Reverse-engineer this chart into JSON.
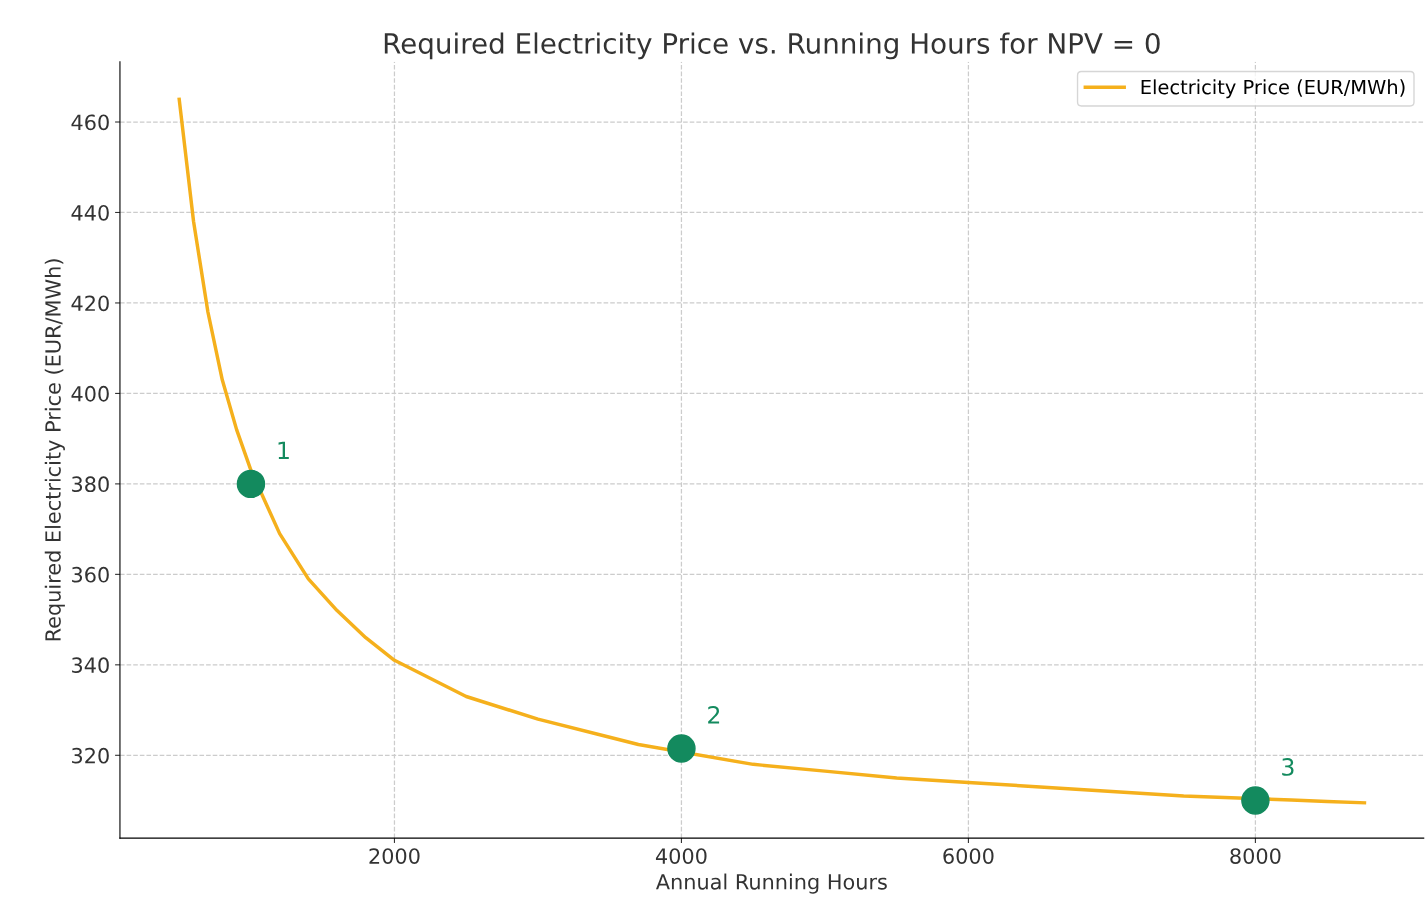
{
  "chart_data": {
    "type": "line",
    "title": "Required Electricity Price vs. Running Hours for NPV = 0",
    "xlabel": "Annual Running Hours",
    "ylabel": "Required Electricity Price (EUR/MWh)",
    "series": [
      {
        "name": "Electricity Price (EUR/MWh)",
        "color": "#f5b01c",
        "marker": "none",
        "x": [
          500,
          600,
          700,
          800,
          900,
          1000,
          1200,
          1400,
          1600,
          1800,
          2000,
          2500,
          3000,
          3500,
          3700,
          4500,
          5000,
          5500,
          6000,
          6500,
          7000,
          7500,
          8250,
          8500,
          8760
        ],
        "values": [
          465,
          438,
          418,
          403,
          392,
          383,
          369,
          359,
          352,
          346,
          341,
          333,
          328,
          324,
          322.4,
          318,
          316.5,
          315,
          314,
          313,
          312,
          311,
          310.1,
          309.8,
          309.5
        ]
      },
      {
        "type": "scatter",
        "color": "#138a5e",
        "marker": "circle",
        "x": [
          1000,
          4000,
          8000
        ],
        "values": [
          380,
          321.5,
          310
        ]
      }
    ],
    "annotations": [
      {
        "text": "1",
        "x": 1000,
        "y": 380
      },
      {
        "text": "2",
        "x": 4000,
        "y": 321.5
      },
      {
        "text": "3",
        "x": 8000,
        "y": 310
      }
    ],
    "xlim": [
      87,
      9173
    ],
    "ylim": [
      301.7,
      473.3
    ],
    "xticks": [
      2000,
      4000,
      6000,
      8000
    ],
    "yticks": [
      320,
      340,
      360,
      380,
      400,
      420,
      440,
      460
    ],
    "grid": true,
    "legend": "top right"
  }
}
